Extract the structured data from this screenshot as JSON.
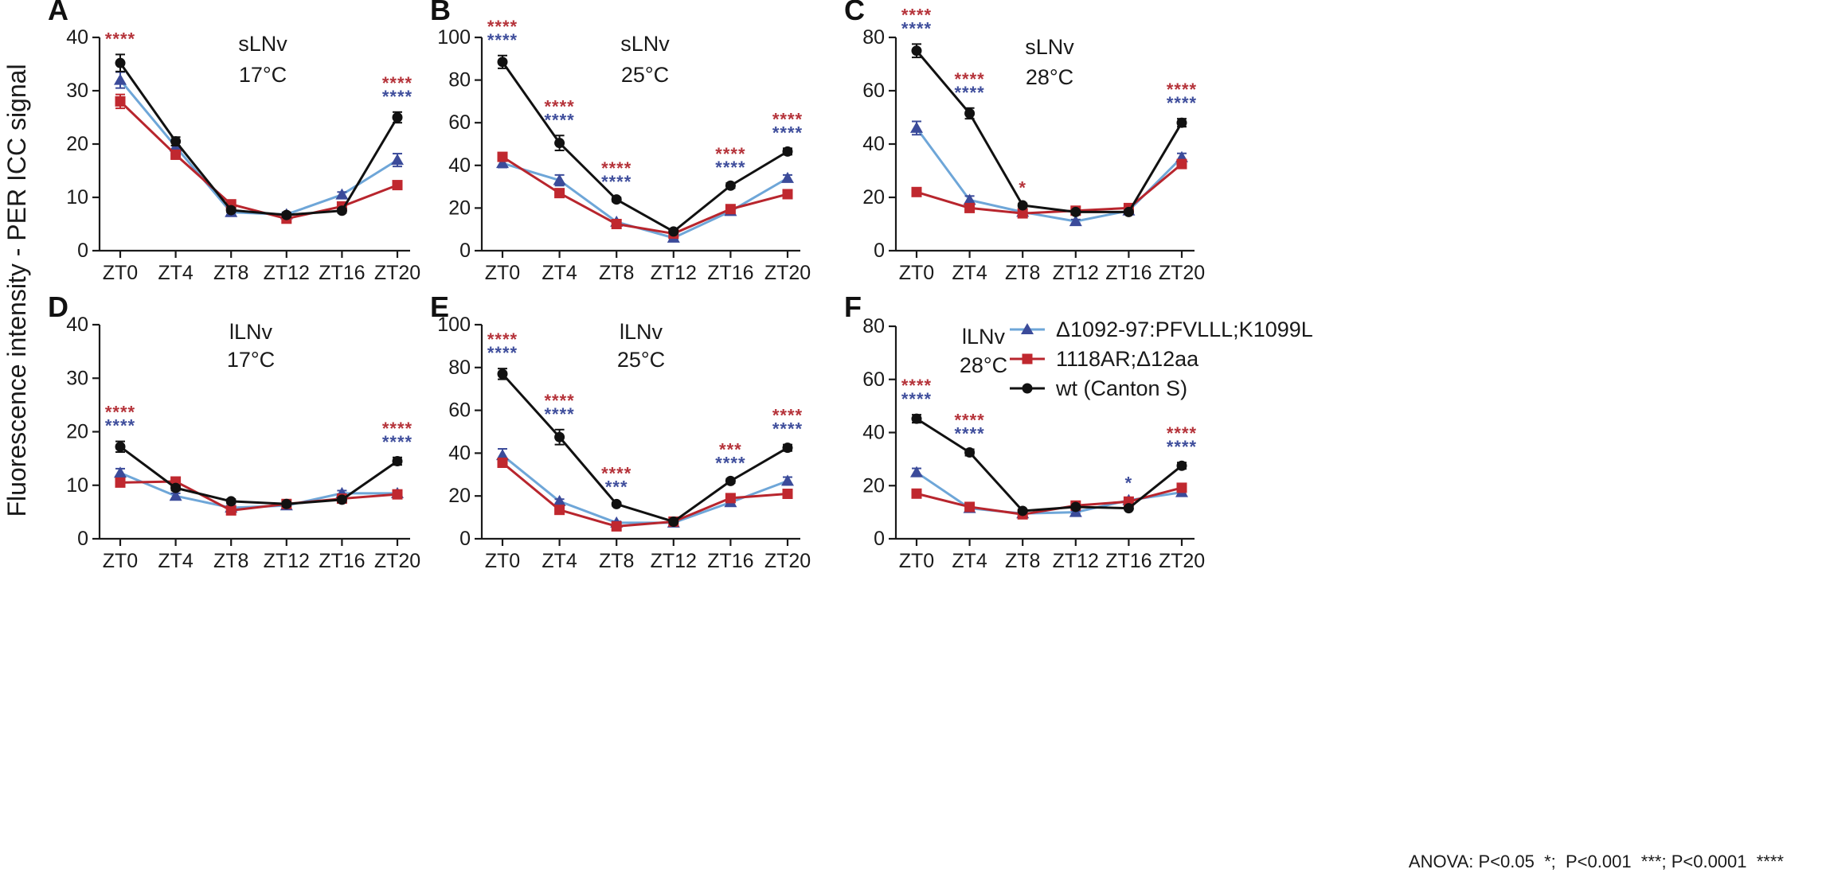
{
  "figure": {
    "ylabel": "Fluorescence intensity - PER ICC signal",
    "footnote": "ANOVA: P<0.05  *;  P<0.001  ***; P<0.0001  ****"
  },
  "colors": {
    "blue": "#3b4b9a",
    "blue_line": "#6ea6d8",
    "red": "#c0282f",
    "red_line": "#b8252d",
    "black": "#111111",
    "star_red": "#b5333a",
    "star_blue": "#3f4e9c"
  },
  "legend": {
    "items": [
      {
        "label": "Δ1092-97:PFVLLL;K1099L",
        "series": "blue",
        "marker": "triangle"
      },
      {
        "label": "1118AR;Δ12aa",
        "series": "red",
        "marker": "square"
      },
      {
        "label": "wt (Canton S)",
        "series": "black",
        "marker": "circle"
      }
    ]
  },
  "chart_data": [
    {
      "panel": "A",
      "type": "line",
      "cell": "sLNv",
      "temp": "17°C",
      "categories": [
        "ZT0",
        "ZT4",
        "ZT8",
        "ZT12",
        "ZT16",
        "ZT20"
      ],
      "ylim": [
        0,
        40
      ],
      "yticks": [
        0,
        10,
        20,
        30,
        40
      ],
      "series": [
        {
          "key": "blue",
          "name": "Δ1092-97:PFVLLL;K1099L",
          "values": [
            32,
            19.5,
            7.2,
            6.8,
            10.5,
            17
          ],
          "err": [
            1.5,
            0.8,
            0.5,
            0.4,
            0.5,
            1.2
          ]
        },
        {
          "key": "red",
          "name": "1118AR;Δ12aa",
          "values": [
            28,
            18,
            8.7,
            6,
            8.3,
            12.3
          ],
          "err": [
            1.3,
            0.8,
            0.5,
            0.4,
            0.5,
            0.7
          ]
        },
        {
          "key": "black",
          "name": "wt (Canton S)",
          "values": [
            35.2,
            20.5,
            7.6,
            6.7,
            7.5,
            25
          ],
          "err": [
            1.6,
            0.8,
            0.4,
            0.4,
            0.4,
            1.0
          ]
        }
      ],
      "annotations": [
        {
          "x": "ZT0",
          "rows": [
            {
              "color": "red",
              "text": "****"
            }
          ]
        },
        {
          "x": "ZT20",
          "rows": [
            {
              "color": "red",
              "text": "****"
            },
            {
              "color": "blue",
              "text": "****"
            }
          ]
        }
      ]
    },
    {
      "panel": "B",
      "type": "line",
      "cell": "sLNv",
      "temp": "25°C",
      "categories": [
        "ZT0",
        "ZT4",
        "ZT8",
        "ZT12",
        "ZT16",
        "ZT20"
      ],
      "ylim": [
        0,
        100
      ],
      "yticks": [
        0,
        20,
        40,
        60,
        80,
        100
      ],
      "series": [
        {
          "key": "blue",
          "name": "Δ1092-97:PFVLLL;K1099L",
          "values": [
            41,
            33,
            13.5,
            6,
            18.5,
            34
          ],
          "err": [
            2,
            2.5,
            1,
            0.6,
            1,
            1.5
          ]
        },
        {
          "key": "red",
          "name": "1118AR;Δ12aa",
          "values": [
            44,
            27,
            12.5,
            8,
            19.5,
            26.5
          ],
          "err": [
            1.5,
            1.5,
            1,
            0.6,
            1,
            1.2
          ]
        },
        {
          "key": "black",
          "name": "wt (Canton S)",
          "values": [
            88.5,
            50.5,
            24,
            9,
            30.5,
            46.5
          ],
          "err": [
            3,
            3.5,
            1,
            0.5,
            1.2,
            1.5
          ]
        }
      ],
      "annotations": [
        {
          "x": "ZT0",
          "rows": [
            {
              "color": "red",
              "text": "****"
            },
            {
              "color": "blue",
              "text": "****"
            }
          ]
        },
        {
          "x": "ZT4",
          "rows": [
            {
              "color": "red",
              "text": "****"
            },
            {
              "color": "blue",
              "text": "****"
            }
          ]
        },
        {
          "x": "ZT8",
          "rows": [
            {
              "color": "red",
              "text": "****"
            },
            {
              "color": "blue",
              "text": "****"
            }
          ]
        },
        {
          "x": "ZT16",
          "rows": [
            {
              "color": "red",
              "text": "****"
            },
            {
              "color": "blue",
              "text": "****"
            }
          ]
        },
        {
          "x": "ZT20",
          "rows": [
            {
              "color": "red",
              "text": "****"
            },
            {
              "color": "blue",
              "text": "****"
            }
          ]
        }
      ]
    },
    {
      "panel": "C",
      "type": "line",
      "cell": "sLNv",
      "temp": "28°C",
      "categories": [
        "ZT0",
        "ZT4",
        "ZT8",
        "ZT12",
        "ZT16",
        "ZT20"
      ],
      "ylim": [
        0,
        80
      ],
      "yticks": [
        0,
        20,
        40,
        60,
        80
      ],
      "series": [
        {
          "key": "blue",
          "name": "Δ1092-97:PFVLLL;K1099L",
          "values": [
            46,
            19,
            14.5,
            11,
            15,
            35
          ],
          "err": [
            2.5,
            1.5,
            0.7,
            0.7,
            0.7,
            1.5
          ]
        },
        {
          "key": "red",
          "name": "1118AR;Δ12aa",
          "values": [
            22,
            16,
            14,
            15,
            16,
            32.5
          ],
          "err": [
            0.8,
            0.8,
            0.6,
            0.6,
            0.6,
            1
          ]
        },
        {
          "key": "black",
          "name": "wt (Canton S)",
          "values": [
            75,
            51.5,
            17,
            14.5,
            14.5,
            48
          ],
          "err": [
            2.5,
            2,
            0.7,
            0.6,
            0.6,
            1.5
          ]
        }
      ],
      "annotations": [
        {
          "x": "ZT0",
          "rows": [
            {
              "color": "red",
              "text": "****"
            },
            {
              "color": "blue",
              "text": "****"
            }
          ]
        },
        {
          "x": "ZT4",
          "rows": [
            {
              "color": "red",
              "text": "****"
            },
            {
              "color": "blue",
              "text": "****"
            }
          ]
        },
        {
          "x": "ZT8",
          "rows": [
            {
              "color": "red",
              "text": "*"
            }
          ]
        },
        {
          "x": "ZT20",
          "rows": [
            {
              "color": "red",
              "text": "****"
            },
            {
              "color": "blue",
              "text": "****"
            }
          ]
        }
      ]
    },
    {
      "panel": "D",
      "type": "line",
      "cell": "lLNv",
      "temp": "17°C",
      "categories": [
        "ZT0",
        "ZT4",
        "ZT8",
        "ZT12",
        "ZT16",
        "ZT20"
      ],
      "ylim": [
        0,
        40
      ],
      "yticks": [
        0,
        10,
        20,
        30,
        40
      ],
      "series": [
        {
          "key": "blue",
          "name": "Δ1092-97:PFVLLL;K1099L",
          "values": [
            12.3,
            8,
            5.8,
            6.2,
            8.5,
            8.5
          ],
          "err": [
            0.8,
            0.5,
            0.4,
            0.4,
            0.5,
            0.5
          ]
        },
        {
          "key": "red",
          "name": "1118AR;Δ12aa",
          "values": [
            10.5,
            10.7,
            5.3,
            6.5,
            7.5,
            8.3
          ],
          "err": [
            0.5,
            0.4,
            0.4,
            0.4,
            0.4,
            0.4
          ]
        },
        {
          "key": "black",
          "name": "wt (Canton S)",
          "values": [
            17.2,
            9.5,
            7,
            6.5,
            7.3,
            14.5
          ],
          "err": [
            1,
            0.5,
            0.4,
            0.4,
            0.4,
            0.7
          ]
        }
      ],
      "annotations": [
        {
          "x": "ZT0",
          "rows": [
            {
              "color": "red",
              "text": "****"
            },
            {
              "color": "blue",
              "text": "****"
            }
          ]
        },
        {
          "x": "ZT20",
          "rows": [
            {
              "color": "red",
              "text": "****"
            },
            {
              "color": "blue",
              "text": "****"
            }
          ]
        }
      ]
    },
    {
      "panel": "E",
      "type": "line",
      "cell": "lLNv",
      "temp": "25°C",
      "categories": [
        "ZT0",
        "ZT4",
        "ZT8",
        "ZT12",
        "ZT16",
        "ZT20"
      ],
      "ylim": [
        0,
        100
      ],
      "yticks": [
        0,
        20,
        40,
        60,
        80,
        100
      ],
      "series": [
        {
          "key": "blue",
          "name": "Δ1092-97:PFVLLL;K1099L",
          "values": [
            39,
            17.5,
            7.5,
            7.5,
            17,
            27
          ],
          "err": [
            3,
            1,
            0.6,
            0.6,
            1.5,
            1.8
          ]
        },
        {
          "key": "red",
          "name": "1118AR;Δ12aa",
          "values": [
            35.5,
            13.5,
            5.8,
            8,
            19,
            21
          ],
          "err": [
            1.5,
            1,
            0.5,
            0.5,
            1,
            1.2
          ]
        },
        {
          "key": "black",
          "name": "wt (Canton S)",
          "values": [
            77,
            47.5,
            16.2,
            8,
            27,
            42.5
          ],
          "err": [
            2.5,
            3.5,
            0.8,
            0.5,
            1,
            1.5
          ]
        }
      ],
      "annotations": [
        {
          "x": "ZT0",
          "rows": [
            {
              "color": "red",
              "text": "****"
            },
            {
              "color": "blue",
              "text": "****"
            }
          ]
        },
        {
          "x": "ZT4",
          "rows": [
            {
              "color": "red",
              "text": "****"
            },
            {
              "color": "blue",
              "text": "****"
            }
          ]
        },
        {
          "x": "ZT8",
          "rows": [
            {
              "color": "red",
              "text": "****"
            },
            {
              "color": "blue",
              "text": "***"
            }
          ]
        },
        {
          "x": "ZT16",
          "rows": [
            {
              "color": "red",
              "text": "***"
            },
            {
              "color": "blue",
              "text": "****"
            }
          ]
        },
        {
          "x": "ZT20",
          "rows": [
            {
              "color": "red",
              "text": "****"
            },
            {
              "color": "blue",
              "text": "****"
            }
          ]
        }
      ]
    },
    {
      "panel": "F",
      "type": "line",
      "cell": "lLNv",
      "temp": "28°C",
      "categories": [
        "ZT0",
        "ZT4",
        "ZT8",
        "ZT12",
        "ZT16",
        "ZT20"
      ],
      "ylim": [
        0,
        80
      ],
      "yticks": [
        0,
        20,
        40,
        60,
        80
      ],
      "series": [
        {
          "key": "blue",
          "name": "Δ1092-97:PFVLLL;K1099L",
          "values": [
            25,
            11.5,
            9.5,
            10,
            14.5,
            17.5
          ],
          "err": [
            1.5,
            0.6,
            0.5,
            0.5,
            0.7,
            0.8
          ]
        },
        {
          "key": "red",
          "name": "1118AR;Δ12aa",
          "values": [
            17,
            12,
            9.2,
            12.5,
            14,
            19.2
          ],
          "err": [
            0.6,
            0.5,
            0.5,
            0.5,
            0.6,
            0.7
          ]
        },
        {
          "key": "black",
          "name": "wt (Canton S)",
          "values": [
            45.2,
            32.5,
            10.5,
            12,
            11.5,
            27.5
          ],
          "err": [
            1.5,
            1.2,
            0.5,
            0.5,
            0.5,
            1.2
          ]
        }
      ],
      "annotations": [
        {
          "x": "ZT0",
          "rows": [
            {
              "color": "red",
              "text": "****"
            },
            {
              "color": "blue",
              "text": "****"
            }
          ]
        },
        {
          "x": "ZT4",
          "rows": [
            {
              "color": "red",
              "text": "****"
            },
            {
              "color": "blue",
              "text": "****"
            }
          ]
        },
        {
          "x": "ZT16",
          "rows": [
            {
              "color": "blue",
              "text": "*"
            }
          ]
        },
        {
          "x": "ZT20",
          "rows": [
            {
              "color": "red",
              "text": "****"
            },
            {
              "color": "blue",
              "text": "****"
            }
          ]
        }
      ]
    }
  ]
}
